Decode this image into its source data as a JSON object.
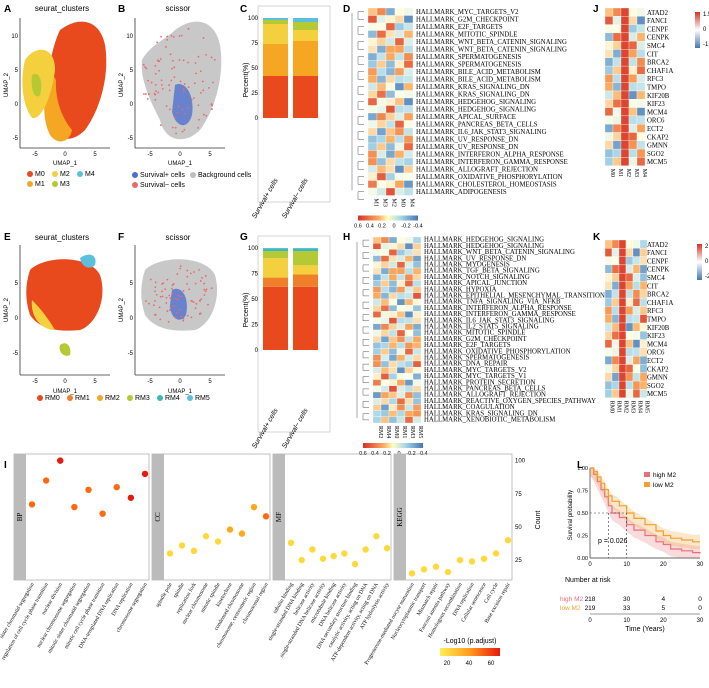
{
  "panels": {
    "A": {
      "letter": "A",
      "title": "seurat_clusters",
      "xlabel": "UMAP_1",
      "ylabel": "UMAP_2",
      "xticks": [
        "-5",
        "0",
        "5"
      ],
      "yticks": [
        "10",
        "5",
        "0",
        "-5"
      ],
      "legend": [
        {
          "label": "M0",
          "color": "#e8491d"
        },
        {
          "label": "M1",
          "color": "#f5a623"
        },
        {
          "label": "M2",
          "color": "#f4d03f"
        },
        {
          "label": "M3",
          "color": "#b5c934"
        },
        {
          "label": "M4",
          "color": "#5bc0de"
        }
      ]
    },
    "B": {
      "letter": "B",
      "title": "scissor",
      "xlabel": "UMAP_1",
      "ylabel": "UMAP_2",
      "xticks": [
        "-5",
        "0",
        "5"
      ],
      "yticks": [
        "10",
        "5",
        "0",
        "-5"
      ],
      "legend": [
        {
          "label": "Survival+ cells",
          "color": "#4a6fd0"
        },
        {
          "label": "Background cells",
          "color": "#bdbdbd"
        },
        {
          "label": "Survival− cells",
          "color": "#e86a6a"
        }
      ]
    },
    "C": {
      "letter": "C",
      "ylabel": "Percent(%)",
      "yticks": [
        "100",
        "75",
        "50",
        "25",
        "0"
      ],
      "categories": [
        "Survival+ cells",
        "Survival− cells"
      ]
    },
    "D": {
      "letter": "D",
      "legend_ticks": [
        "0.6",
        "0.4",
        "0.2",
        "0",
        "-0.2",
        "-0.4"
      ],
      "columns": [
        "M1",
        "M3",
        "M2",
        "M0",
        "M4"
      ],
      "rows": [
        "HALLMARK_MYC_TARGETS_V2",
        "HALLMARK_G2M_CHECKPOINT",
        "HALLMARK_E2F_TARGETS",
        "HALLMARK_MITOTIC_SPINDLE",
        "HALLMARK_WNT_BETA_CATENIN_SIGNALING",
        "HALLMARK_WNT_BETA_CATENIN_SIGNALING",
        "HALLMARK_SPERMATOGENESIS",
        "HALLMARK_SPERMATOGENESIS",
        "HALLMARK_BILE_ACID_METABOLISM",
        "HALLMARK_BILE_ACID_METABOLISM",
        "HALLMARK_KRAS_SIGNALING_DN",
        "HALLMARK_KRAS_SIGNALING_DN",
        "HALLMARK_HEDGEHOG_SIGNALING",
        "HALLMARK_HEDGEHOG_SIGNALING",
        "HALLMARK_APICAL_SURFACE",
        "HALLMARK_PANCREAS_BETA_CELLS",
        "HALLMARK_IL6_JAK_STAT3_SIGNALING",
        "HALLMARK_UV_RESPONSE_DN",
        "HALLMARK_UV_RESPONSE_DN",
        "HALLMARK_INTERFERON_ALPHA_RESPONSE",
        "HALLMARK_INTERFERON_GAMMA_RESPONSE",
        "HALLMARK_ALLOGRAFT_REJECTION",
        "HALLMARK_OXIDATIVE_PHOSPHORYLATION",
        "HALLMARK_CHOLESTEROL_HOMEOSTASIS",
        "HALLMARK_ADIPOGENESIS"
      ]
    },
    "J": {
      "letter": "J",
      "legend_ticks": [
        "1.5",
        "0",
        "-1.5"
      ],
      "columns": [
        "M0",
        "M1",
        "M2",
        "M3",
        "M4"
      ],
      "rows": [
        "ATAD2",
        "FANCI",
        "CENPF",
        "CENPK",
        "SMC4",
        "CIT",
        "BRCA2",
        "CHAF1A",
        "RFC3",
        "TMPO",
        "KIF20B",
        "KIF23",
        "MCM4",
        "ORC6",
        "ECT2",
        "CKAP2",
        "GMNN",
        "SGO2",
        "MCM5"
      ]
    },
    "E": {
      "letter": "E",
      "title": "seurat_clusters",
      "xlabel": "UMAP_1",
      "ylabel": "UMAP_2",
      "xticks": [
        "-5",
        "0",
        "5"
      ],
      "yticks": [
        "5",
        "0",
        "-5"
      ],
      "legend": [
        {
          "label": "RM0",
          "color": "#e8491d"
        },
        {
          "label": "RM1",
          "color": "#f07f2a"
        },
        {
          "label": "RM2",
          "color": "#f5a623"
        },
        {
          "label": "RM3",
          "color": "#b5c934"
        },
        {
          "label": "RM4",
          "color": "#3fb8b0"
        },
        {
          "label": "RM5",
          "color": "#5bc0de"
        }
      ]
    },
    "F": {
      "letter": "F",
      "title": "scissor",
      "xlabel": "UMAP_1",
      "ylabel": "UMAP_2",
      "xticks": [
        "-5",
        "0",
        "5"
      ],
      "yticks": [
        "5",
        "0",
        "-5"
      ]
    },
    "G": {
      "letter": "G",
      "ylabel": "Percent(%)",
      "yticks": [
        "100",
        "75",
        "50",
        "25",
        "0"
      ],
      "categories": [
        "Survival+ cells",
        "Survival− cells"
      ]
    },
    "H": {
      "letter": "H",
      "legend_ticks": [
        "0.6",
        "0.4",
        "0.2",
        "0",
        "-0.2",
        "-0.4"
      ],
      "columns": [
        "RM2",
        "RM4",
        "RM0",
        "RM1",
        "RM3",
        "RM5"
      ],
      "rows": [
        "HALLMARK_HEDGEHOG_SIGNALING",
        "HALLMARK_HEDGEHOG_SIGNALING",
        "HALLMARK_WNT_BETA_CATENIN_SIGNALING",
        "HALLMARK_UV_RESPONSE_DN",
        "HALLMARK_MYOGENESIS",
        "HALLMARK_TGF_BETA_SIGNALING",
        "HALLMARK_NOTCH_SIGNALING",
        "HALLMARK_APICAL_JUNCTION",
        "HALLMARK_HYPOXIA",
        "HALLMARK_EPITHELIAL_MESENCHYMAL_TRANSITION",
        "HALLMARK_TNFA_SIGNALING_VIA_NFKB",
        "HALLMARK_INTERFERON_ALPHA_RESPONSE",
        "HALLMARK_INTERFERON_GAMMA_RESPONSE",
        "HALLMARK_IL6_JAK_STAT3_SIGNALING",
        "HALLMARK_IL2_STAT5_SIGNALING",
        "HALLMARK_MITOTIC_SPINDLE",
        "HALLMARK_G2M_CHECKPOINT",
        "HALLMARK_E2F_TARGETS",
        "HALLMARK_OXIDATIVE_PHOSPHORYLATION",
        "HALLMARK_SPERMATOGENESIS",
        "HALLMARK_DNA_REPAIR",
        "HALLMARK_MYC_TARGETS_V2",
        "HALLMARK_MYC_TARGETS_V1",
        "HALLMARK_PROTEIN_SECRETION",
        "HALLMARK_PANCREAS_BETA_CELLS",
        "HALLMARK_ALLOGRAFT_REJECTION",
        "HALLMARK_REACTIVE_OXYGEN_SPECIES_PATHWAY",
        "HALLMARK_COAGULATION",
        "HALLMARK_KRAS_SIGNALING_DN",
        "HALLMARK_XENOBIOTIC_METABOLISM"
      ]
    },
    "K": {
      "letter": "K",
      "legend_ticks": [
        "2",
        "0",
        "-2"
      ],
      "columns": [
        "RM0",
        "RM1",
        "RM2",
        "RM3",
        "RM4",
        "RM5"
      ],
      "rows": [
        "ATAD2",
        "FANCI",
        "CENPF",
        "CENPK",
        "SMC4",
        "CIT",
        "BRCA2",
        "CHAF1A",
        "RFC3",
        "TMPO",
        "KIF20B",
        "KIF23",
        "MCM4",
        "ORC6",
        "ECT2",
        "CKAP2",
        "GMNN",
        "SGO2",
        "MCM5"
      ]
    },
    "I": {
      "letter": "I",
      "facets": [
        "BP",
        "CC",
        "MF",
        "KEGG"
      ],
      "count_label": "Count",
      "count_ticks": [
        "100",
        "75",
        "50",
        "25"
      ],
      "color_label": "-Log10 (p.adjust)",
      "color_ticks": [
        "20",
        "40",
        "60"
      ],
      "BP_terms": [
        "sister chromatid segregation",
        "regulation of cell cycle phase transition",
        "nuclear division",
        "nuclear chromosome segregation",
        "mitotic sister chromatid segregation",
        "mitotic cell cycle phase transition",
        "DNA-templated DNA replication",
        "DNA replication",
        "chromosome segregation"
      ],
      "CC_terms": [
        "spindle pole",
        "spindle",
        "replication fork",
        "nuclear chromosome",
        "mitotic spindle",
        "kinetochore",
        "condensed chromosome",
        "chromosome, centromeric region",
        "chromosomal region"
      ],
      "MF_terms": [
        "tubulin binding",
        "single-stranded DNA binding",
        "helicase activity",
        "single-stranded DNA helicase activity",
        "microtubule binding",
        "DNA helicase activity",
        "DNA secondary structure binding",
        "catalytic activity, acting on DNA",
        "ATP-dependent activity, acting on DNA",
        "ATP hydrolysis activity"
      ],
      "KEGG_terms": [
        "Progesterone-mediated oocyte maturation",
        "Nucleocytoplasmic transport",
        "Mismatch repair",
        "Fanconi anemia pathway",
        "Homologous recombination",
        "DNA replication",
        "Cellular senescence",
        "Cell cycle",
        "Base excision repair"
      ]
    },
    "L": {
      "letter": "L",
      "ylabel": "Survival probability",
      "xlabel": "Time (Years)",
      "xticks": [
        "0",
        "10",
        "20",
        "30"
      ],
      "yticks": [
        "1.00",
        "0.75",
        "0.50",
        "0.25",
        "0.00"
      ],
      "legend_high": "high M2",
      "legend_low": "low M2",
      "pvalue": "p = 0.026",
      "risk_title": "Number at risk",
      "risk_high_label": "high M2",
      "risk_low_label": "low M2",
      "risk_high": [
        "218",
        "30",
        "4",
        "0"
      ],
      "risk_low": [
        "219",
        "33",
        "5",
        "0"
      ],
      "risk_xlabel": "Time (Years)"
    }
  },
  "chart_data": [
    {
      "type": "bar",
      "title": "C",
      "stacked": true,
      "ylabel": "Percent(%)",
      "ylim": [
        0,
        100
      ],
      "categories": [
        "Survival+ cells",
        "Survival− cells"
      ],
      "series": [
        {
          "name": "M0",
          "color": "#e8491d",
          "values": [
            42,
            42
          ]
        },
        {
          "name": "M1",
          "color": "#f5a623",
          "values": [
            32,
            35
          ]
        },
        {
          "name": "M2",
          "color": "#f4d03f",
          "values": [
            20,
            11
          ]
        },
        {
          "name": "M3",
          "color": "#b5c934",
          "values": [
            4,
            8
          ]
        },
        {
          "name": "M4",
          "color": "#5bc0de",
          "values": [
            2,
            4
          ]
        }
      ]
    },
    {
      "type": "bar",
      "title": "G",
      "stacked": true,
      "ylabel": "Percent(%)",
      "ylim": [
        0,
        100
      ],
      "categories": [
        "Survival+ cells",
        "Survival− cells"
      ],
      "series": [
        {
          "name": "RM0",
          "color": "#e8491d",
          "values": [
            62,
            62
          ]
        },
        {
          "name": "RM1",
          "color": "#f07f2a",
          "values": [
            9,
            12
          ]
        },
        {
          "name": "RM2",
          "color": "#f4d03f",
          "values": [
            19,
            9
          ]
        },
        {
          "name": "RM3",
          "color": "#b5c934",
          "values": [
            7,
            14
          ]
        },
        {
          "name": "RM4",
          "color": "#3fb8b0",
          "values": [
            2,
            2
          ]
        },
        {
          "name": "RM5",
          "color": "#5bc0de",
          "values": [
            1,
            1
          ]
        }
      ]
    },
    {
      "type": "scatter",
      "title": "I",
      "facet_values": {
        "BP": {
          "count": [
            67,
            85,
            100,
            65,
            78,
            60,
            80,
            72,
            90
          ],
          "logp": [
            40,
            45,
            60,
            42,
            50,
            45,
            48,
            55,
            60
          ]
        },
        "CC": {
          "count": [
            30,
            36,
            32,
            43,
            39,
            48,
            45,
            65,
            58
          ],
          "logp": [
            20,
            22,
            21,
            24,
            23,
            26,
            25,
            30,
            40
          ]
        },
        "MF": {
          "count": [
            38,
            25,
            33,
            26,
            28,
            30,
            22,
            33,
            43,
            34
          ],
          "logp": [
            18,
            17,
            16,
            18,
            17,
            19,
            16,
            20,
            22,
            21
          ]
        },
        "KEGG": {
          "count": [
            15,
            18,
            20,
            16,
            25,
            24,
            26,
            30,
            40
          ],
          "logp": [
            10,
            11,
            12,
            10,
            13,
            13,
            14,
            16,
            20
          ]
        }
      }
    },
    {
      "type": "line",
      "title": "L",
      "xlabel": "Time (Years)",
      "ylabel": "Survival probability",
      "xlim": [
        0,
        30
      ],
      "ylim": [
        0,
        1
      ],
      "series": [
        {
          "name": "high M2",
          "color": "#e8707a",
          "x": [
            0,
            1,
            2,
            3,
            4,
            5,
            6,
            8,
            10,
            12,
            15,
            18,
            20,
            22,
            25,
            28,
            30
          ],
          "y": [
            1.0,
            0.93,
            0.85,
            0.76,
            0.68,
            0.58,
            0.5,
            0.45,
            0.37,
            0.31,
            0.25,
            0.18,
            0.15,
            0.1,
            0.08,
            0.06,
            0.05
          ]
        },
        {
          "name": "low M2",
          "color": "#f0a030",
          "x": [
            0,
            1,
            2,
            3,
            4,
            5,
            6,
            8,
            10,
            12,
            15,
            18,
            20,
            22,
            25,
            28,
            30
          ],
          "y": [
            1.0,
            0.96,
            0.9,
            0.83,
            0.76,
            0.69,
            0.63,
            0.58,
            0.5,
            0.44,
            0.37,
            0.3,
            0.25,
            0.22,
            0.2,
            0.18,
            0.18
          ]
        }
      ]
    }
  ]
}
